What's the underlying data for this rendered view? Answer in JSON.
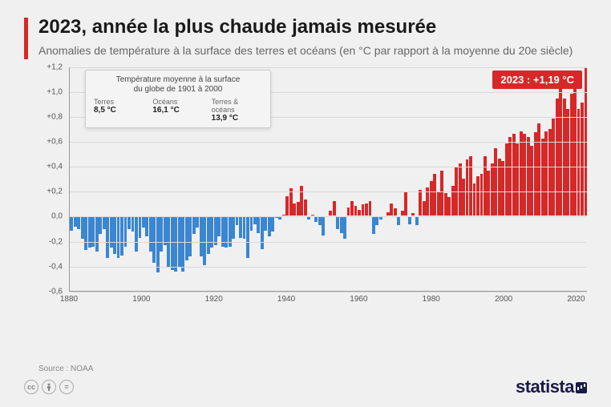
{
  "accent_color": "#d62828",
  "title": "2023, année la plus chaude jamais mesurée",
  "subtitle": "Anomalies de température à la surface des terres et océans (en °C par rapport à la moyenne du 20e siècle)",
  "info_box": {
    "title_line1": "Température moyenne à la surface",
    "title_line2": "du globe de 1901 à 2000",
    "cols": [
      {
        "label": "Terres",
        "value": "8,5 °C"
      },
      {
        "label": "Océans",
        "value": "16,1 °C"
      },
      {
        "label": "Terres & océans",
        "value": "13,9 °C"
      }
    ]
  },
  "callout": "2023 : +1,19 °C",
  "source": "Source : NOAA",
  "logo": "statista",
  "chart": {
    "type": "bar",
    "x_start": 1880,
    "x_end": 2023,
    "ylim": [
      -0.6,
      1.2
    ],
    "ytick_step": 0.2,
    "y_tick_labels": [
      "+1,2",
      "+1,0",
      "+0,8",
      "+0,6",
      "+0,4",
      "+0,2",
      "0,0",
      "-0,2",
      "-0,4",
      "-0,6"
    ],
    "x_ticks": [
      1880,
      1900,
      1920,
      1940,
      1960,
      1980,
      2000,
      2020
    ],
    "grid_color": "#d8d8d8",
    "pos_color": "#d62828",
    "neg_color": "#3a86d1",
    "background_color": "#f0f0f0",
    "bar_gap": 0.3,
    "values": [
      -0.11,
      -0.08,
      -0.1,
      -0.18,
      -0.27,
      -0.25,
      -0.24,
      -0.28,
      -0.14,
      -0.1,
      -0.33,
      -0.25,
      -0.3,
      -0.33,
      -0.31,
      -0.24,
      -0.1,
      -0.12,
      -0.28,
      -0.17,
      -0.09,
      -0.16,
      -0.28,
      -0.37,
      -0.45,
      -0.28,
      -0.23,
      -0.4,
      -0.43,
      -0.44,
      -0.4,
      -0.44,
      -0.35,
      -0.32,
      -0.14,
      -0.09,
      -0.32,
      -0.39,
      -0.3,
      -0.25,
      -0.23,
      -0.16,
      -0.24,
      -0.25,
      -0.24,
      -0.18,
      -0.07,
      -0.17,
      -0.18,
      -0.33,
      -0.11,
      -0.06,
      -0.13,
      -0.26,
      -0.11,
      -0.16,
      -0.12,
      -0.01,
      -0.02,
      0.01,
      0.16,
      0.22,
      0.1,
      0.11,
      0.24,
      0.13,
      -0.02,
      0.01,
      -0.04,
      -0.07,
      -0.15,
      0.0,
      0.04,
      0.12,
      -0.1,
      -0.13,
      -0.18,
      0.07,
      0.12,
      0.08,
      0.05,
      0.09,
      0.1,
      0.12,
      -0.14,
      -0.07,
      -0.02,
      0.0,
      0.03,
      0.1,
      0.06,
      -0.07,
      0.04,
      0.19,
      -0.06,
      0.02,
      -0.07,
      0.21,
      0.12,
      0.23,
      0.28,
      0.34,
      0.19,
      0.36,
      0.18,
      0.15,
      0.24,
      0.39,
      0.42,
      0.3,
      0.45,
      0.48,
      0.26,
      0.32,
      0.34,
      0.48,
      0.36,
      0.42,
      0.54,
      0.46,
      0.44,
      0.58,
      0.63,
      0.66,
      0.58,
      0.68,
      0.66,
      0.63,
      0.56,
      0.67,
      0.74,
      0.62,
      0.68,
      0.7,
      0.78,
      0.94,
      1.03,
      0.94,
      0.86,
      0.98,
      1.02,
      0.86,
      0.91,
      1.19
    ]
  }
}
